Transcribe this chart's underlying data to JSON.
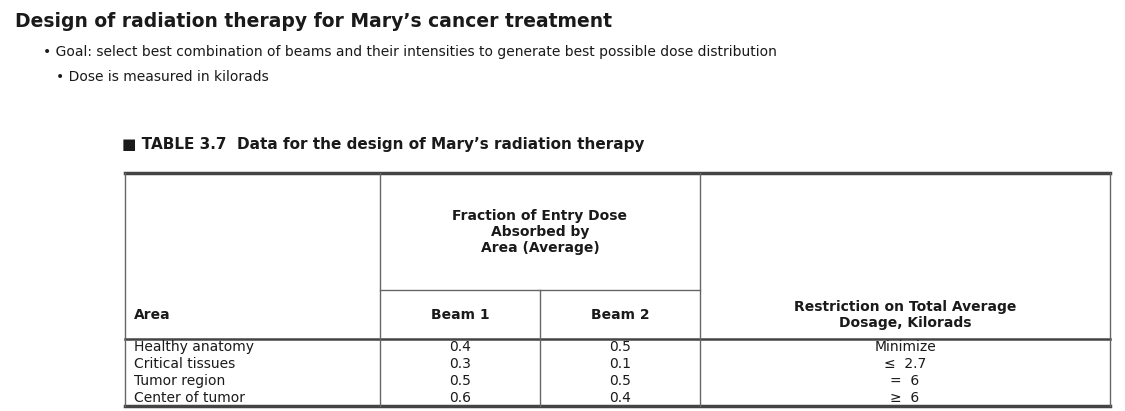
{
  "title": "Design of radiation therapy for Mary’s cancer treatment",
  "bullet1": "Goal: select best combination of beams and their intensities to generate best possible dose distribution",
  "bullet2": "Dose is measured in kilorads",
  "table_title": "■ TABLE 3.7  Data for the design of Mary’s radiation therapy",
  "col_group_header": "Fraction of Entry Dose\nAbsorbed by\nArea (Average)",
  "col_headers": [
    "Area",
    "Beam 1",
    "Beam 2",
    "Restriction on Total Average\nDosage, Kilorads"
  ],
  "rows": [
    [
      "Healthy anatomy",
      "0.4",
      "0.5",
      "Minimize"
    ],
    [
      "Critical tissues",
      "0.3",
      "0.1",
      "≤  2.7"
    ],
    [
      "Tumor region",
      "0.5",
      "0.5",
      "=  6"
    ],
    [
      "Center of tumor",
      "0.6",
      "0.4",
      "≥  6"
    ]
  ],
  "bg_color": "#ffffff",
  "text_color": "#1a1a1a",
  "title_fontsize": 13.5,
  "body_fontsize": 10.0,
  "table_title_fontsize": 11.0,
  "header_fontsize": 10.0
}
